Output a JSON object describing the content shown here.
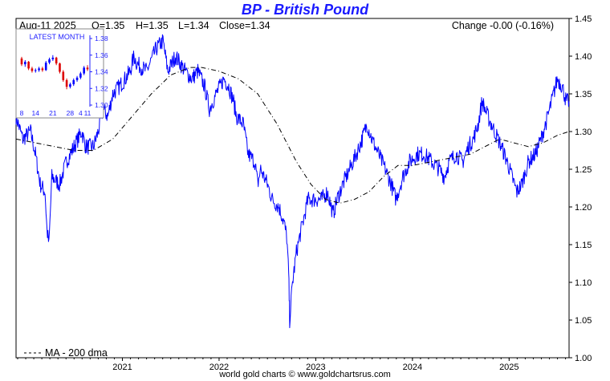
{
  "page": {
    "title": "BP  -  British Pound",
    "footer": "world gold charts © www.goldchartsrus.com"
  },
  "header": {
    "date": "Aug-11  2025",
    "open": "O=1.35",
    "high": "H=1.35",
    "low": "L=1.34",
    "close": "Close=1.34",
    "change": "Change -0.00 (-0.16%)"
  },
  "legend": {
    "ma_label": "MA - 200 dma"
  },
  "inset": {
    "title": "LATEST MONTH",
    "y_ticks": [
      "1.38",
      "1.36",
      "1.34",
      "1.32",
      "1.30"
    ],
    "x_ticks": [
      "8",
      "14",
      "21",
      "28",
      "4",
      "11"
    ],
    "ylim": [
      1.3,
      1.38
    ],
    "candles": [
      {
        "o": 1.356,
        "c": 1.349,
        "h": 1.358,
        "l": 1.347
      },
      {
        "o": 1.349,
        "c": 1.352,
        "h": 1.354,
        "l": 1.346
      },
      {
        "o": 1.352,
        "c": 1.344,
        "h": 1.353,
        "l": 1.342
      },
      {
        "o": 1.344,
        "c": 1.341,
        "h": 1.346,
        "l": 1.339
      },
      {
        "o": 1.341,
        "c": 1.342,
        "h": 1.344,
        "l": 1.339
      },
      {
        "o": 1.342,
        "c": 1.344,
        "h": 1.346,
        "l": 1.34
      },
      {
        "o": 1.344,
        "c": 1.342,
        "h": 1.346,
        "l": 1.34
      },
      {
        "o": 1.342,
        "c": 1.351,
        "h": 1.353,
        "l": 1.341
      },
      {
        "o": 1.351,
        "c": 1.355,
        "h": 1.357,
        "l": 1.349
      },
      {
        "o": 1.355,
        "c": 1.357,
        "h": 1.36,
        "l": 1.353
      },
      {
        "o": 1.357,
        "c": 1.35,
        "h": 1.358,
        "l": 1.348
      },
      {
        "o": 1.35,
        "c": 1.34,
        "h": 1.351,
        "l": 1.338
      },
      {
        "o": 1.34,
        "c": 1.33,
        "h": 1.342,
        "l": 1.328
      },
      {
        "o": 1.33,
        "c": 1.322,
        "h": 1.332,
        "l": 1.319
      },
      {
        "o": 1.322,
        "c": 1.325,
        "h": 1.327,
        "l": 1.32
      },
      {
        "o": 1.325,
        "c": 1.33,
        "h": 1.332,
        "l": 1.323
      },
      {
        "o": 1.33,
        "c": 1.333,
        "h": 1.335,
        "l": 1.328
      },
      {
        "o": 1.333,
        "c": 1.338,
        "h": 1.34,
        "l": 1.331
      },
      {
        "o": 1.338,
        "c": 1.345,
        "h": 1.347,
        "l": 1.336
      },
      {
        "o": 1.345,
        "c": 1.343,
        "h": 1.348,
        "l": 1.341
      }
    ]
  },
  "chart_data": {
    "type": "line",
    "title": "BP  -  British Pound",
    "xlabel": "",
    "ylabel": "",
    "ylim": [
      1.0,
      1.45
    ],
    "y_ticks": [
      "1.45",
      "1.40",
      "1.35",
      "1.30",
      "1.25",
      "1.20",
      "1.15",
      "1.10",
      "1.05",
      "1.00"
    ],
    "x_ticks": [
      {
        "label": "2021",
        "t": 2021.0
      },
      {
        "label": "2022",
        "t": 2022.0
      },
      {
        "label": "2023",
        "t": 2023.0
      },
      {
        "label": "2024",
        "t": 2024.0
      },
      {
        "label": "2025",
        "t": 2025.0
      }
    ],
    "xlim": [
      2019.9,
      2025.62
    ],
    "grid": false,
    "legend_position": "bottom-left",
    "series": [
      {
        "name": "",
        "color": "#0000ff",
        "x": [
          2019.9,
          2019.97,
          2020.05,
          2020.1,
          2020.15,
          2020.2,
          2020.22,
          2020.24,
          2020.27,
          2020.35,
          2020.42,
          2020.5,
          2020.58,
          2020.62,
          2020.7,
          2020.75,
          2020.8,
          2020.85,
          2020.9,
          2020.97,
          2021.03,
          2021.08,
          2021.12,
          2021.15,
          2021.25,
          2021.35,
          2021.42,
          2021.47,
          2021.55,
          2021.65,
          2021.72,
          2021.78,
          2021.85,
          2021.9,
          2021.97,
          2022.05,
          2022.1,
          2022.15,
          2022.18,
          2022.25,
          2022.3,
          2022.37,
          2022.4,
          2022.43,
          2022.5,
          2022.55,
          2022.62,
          2022.67,
          2022.7,
          2022.72,
          2022.73,
          2022.76,
          2022.8,
          2022.85,
          2022.92,
          2023.0,
          2023.06,
          2023.12,
          2023.18,
          2023.22,
          2023.28,
          2023.35,
          2023.42,
          2023.48,
          2023.53,
          2023.58,
          2023.65,
          2023.72,
          2023.78,
          2023.83,
          2023.9,
          2023.97,
          2024.05,
          2024.12,
          2024.2,
          2024.28,
          2024.33,
          2024.38,
          2024.45,
          2024.52,
          2024.58,
          2024.63,
          2024.68,
          2024.72,
          2024.78,
          2024.85,
          2024.92,
          2024.98,
          2025.03,
          2025.08,
          2025.13,
          2025.2,
          2025.27,
          2025.33,
          2025.4,
          2025.46,
          2025.5,
          2025.55,
          2025.59,
          2025.62
        ],
        "values": [
          1.32,
          1.29,
          1.3,
          1.27,
          1.23,
          1.22,
          1.17,
          1.15,
          1.24,
          1.23,
          1.26,
          1.28,
          1.3,
          1.28,
          1.28,
          1.3,
          1.33,
          1.32,
          1.35,
          1.36,
          1.37,
          1.38,
          1.4,
          1.39,
          1.38,
          1.41,
          1.42,
          1.38,
          1.4,
          1.38,
          1.37,
          1.38,
          1.36,
          1.33,
          1.35,
          1.37,
          1.36,
          1.34,
          1.32,
          1.31,
          1.27,
          1.26,
          1.23,
          1.25,
          1.23,
          1.21,
          1.2,
          1.18,
          1.16,
          1.11,
          1.05,
          1.1,
          1.14,
          1.17,
          1.21,
          1.21,
          1.21,
          1.22,
          1.19,
          1.21,
          1.23,
          1.25,
          1.27,
          1.29,
          1.31,
          1.29,
          1.27,
          1.25,
          1.23,
          1.21,
          1.24,
          1.26,
          1.27,
          1.27,
          1.26,
          1.25,
          1.24,
          1.26,
          1.27,
          1.26,
          1.28,
          1.29,
          1.31,
          1.34,
          1.32,
          1.3,
          1.28,
          1.26,
          1.24,
          1.22,
          1.23,
          1.26,
          1.27,
          1.29,
          1.32,
          1.35,
          1.37,
          1.36,
          1.34,
          1.34
        ]
      },
      {
        "name": "MA - 200 dma",
        "color": "#000000",
        "style": "dash-dot",
        "x": [
          2019.9,
          2020.1,
          2020.3,
          2020.5,
          2020.7,
          2020.9,
          2021.1,
          2021.3,
          2021.5,
          2021.7,
          2021.82,
          2022.0,
          2022.2,
          2022.4,
          2022.6,
          2022.8,
          2022.95,
          2023.1,
          2023.25,
          2023.4,
          2023.55,
          2023.7,
          2023.85,
          2024.0,
          2024.2,
          2024.4,
          2024.6,
          2024.75,
          2024.9,
          2025.05,
          2025.2,
          2025.35,
          2025.5,
          2025.62
        ],
        "values": [
          1.29,
          1.285,
          1.28,
          1.275,
          1.275,
          1.29,
          1.32,
          1.35,
          1.375,
          1.385,
          1.385,
          1.38,
          1.37,
          1.35,
          1.31,
          1.26,
          1.23,
          1.21,
          1.205,
          1.21,
          1.22,
          1.24,
          1.255,
          1.255,
          1.26,
          1.265,
          1.27,
          1.28,
          1.29,
          1.285,
          1.28,
          1.285,
          1.295,
          1.3
        ]
      }
    ]
  }
}
